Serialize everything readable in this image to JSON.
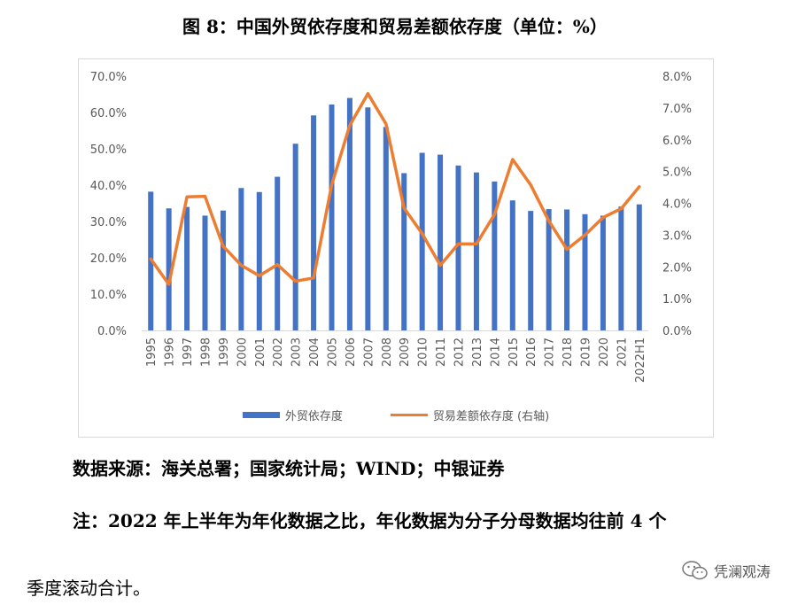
{
  "page": {
    "title": "图 8：中国外贸依存度和贸易差额依存度（单位：%）",
    "source": "数据来源：海关总署；国家统计局；WIND；中银证券",
    "note_prefix": "注：",
    "note_body": "2022 年上半年为年化数据之比，年化数据为分子分母数据均往前 4 个",
    "note_end": "季度滚动合计。",
    "watermark": "凭澜观涛",
    "watermark_icon": "wechat-icon"
  },
  "chart_data": {
    "type": "bar",
    "categories": [
      "1995",
      "1996",
      "1997",
      "1998",
      "1999",
      "2000",
      "2001",
      "2002",
      "2003",
      "2004",
      "2005",
      "2006",
      "2007",
      "2008",
      "2009",
      "2010",
      "2011",
      "2012",
      "2013",
      "2014",
      "2015",
      "2016",
      "2017",
      "2018",
      "2019",
      "2020",
      "2021",
      "2022H1"
    ],
    "series": [
      {
        "name": "外贸依存度",
        "type": "bar",
        "axis": "left",
        "color": "#4472c4",
        "values": [
          38.2,
          33.6,
          34.0,
          31.6,
          33.0,
          39.2,
          38.1,
          42.3,
          51.4,
          59.2,
          62.2,
          64.0,
          61.4,
          56.0,
          43.3,
          48.9,
          48.4,
          45.4,
          43.5,
          41.0,
          35.8,
          32.9,
          33.4,
          33.3,
          32.0,
          31.6,
          34.1,
          34.7
        ]
      },
      {
        "name": "贸易差额依存度 (右轴)",
        "type": "line",
        "axis": "right",
        "color": "#ed7d31",
        "values": [
          2.25,
          1.45,
          4.2,
          4.22,
          2.65,
          2.05,
          1.72,
          2.07,
          1.55,
          1.65,
          4.58,
          6.45,
          7.45,
          6.5,
          3.85,
          3.05,
          2.05,
          2.72,
          2.72,
          3.65,
          5.38,
          4.58,
          3.45,
          2.55,
          3.0,
          3.55,
          3.83,
          4.52
        ]
      }
    ],
    "yleft": {
      "ticks": [
        "0.0%",
        "10.0%",
        "20.0%",
        "30.0%",
        "40.0%",
        "50.0%",
        "60.0%",
        "70.0%"
      ],
      "lim": [
        0,
        70
      ]
    },
    "yright": {
      "ticks": [
        "0.0%",
        "1.0%",
        "2.0%",
        "3.0%",
        "4.0%",
        "5.0%",
        "6.0%",
        "7.0%",
        "8.0%"
      ],
      "lim": [
        0,
        8
      ]
    },
    "grid": false,
    "legend": "bottom"
  }
}
